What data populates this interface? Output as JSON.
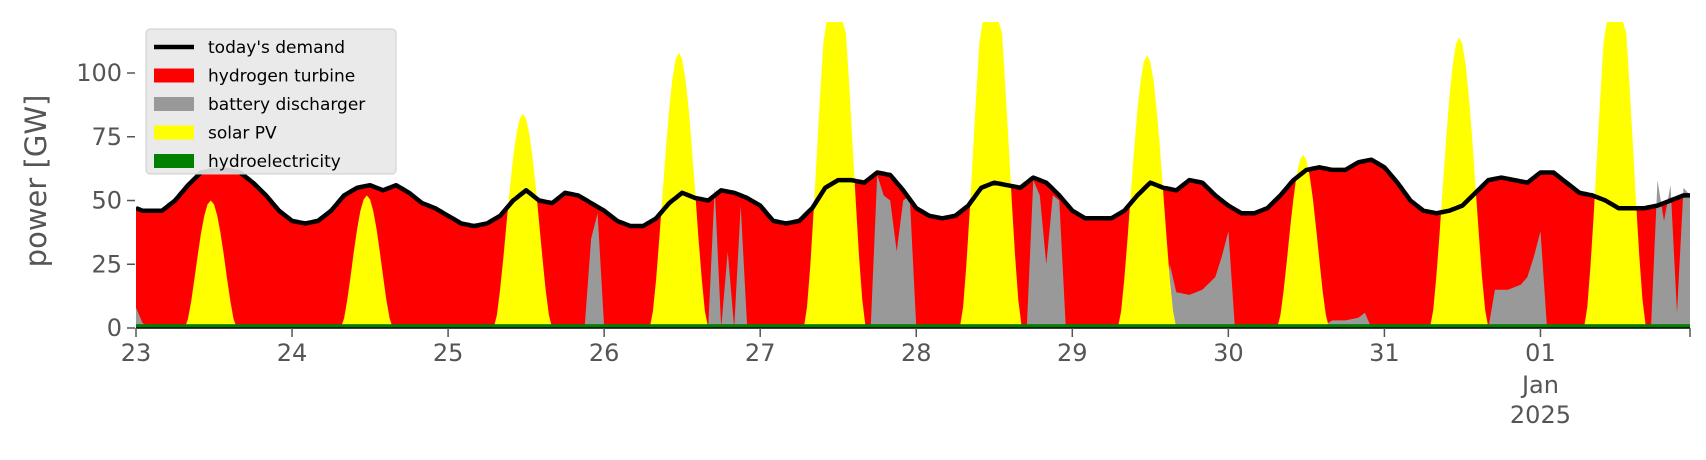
{
  "chart_data": {
    "type": "area",
    "title": "",
    "xlabel": "",
    "ylabel": "power [GW]",
    "ylim": [
      0,
      120
    ],
    "xlim": [
      0,
      239
    ],
    "grid": false,
    "legend_placement": "top-left",
    "y_ticks": [
      {
        "value": 0,
        "label": "0"
      },
      {
        "value": 25,
        "label": "25"
      },
      {
        "value": 50,
        "label": "50"
      },
      {
        "value": 75,
        "label": "75"
      },
      {
        "value": 100,
        "label": "100"
      }
    ],
    "x_ticks": [
      {
        "hour": 0,
        "label": "23"
      },
      {
        "hour": 24,
        "label": "24"
      },
      {
        "hour": 48,
        "label": "25"
      },
      {
        "hour": 72,
        "label": "26"
      },
      {
        "hour": 96,
        "label": "27"
      },
      {
        "hour": 120,
        "label": "28"
      },
      {
        "hour": 144,
        "label": "29"
      },
      {
        "hour": 168,
        "label": "30"
      },
      {
        "hour": 192,
        "label": "31"
      },
      {
        "hour": 216,
        "label": "01",
        "label2": "Jan",
        "label3": "2025"
      }
    ],
    "series": [
      {
        "name": "hydroelectricity",
        "color": "#008000",
        "kind": "area"
      },
      {
        "name": "solar PV",
        "color": "#ffff00",
        "kind": "area"
      },
      {
        "name": "battery discharger",
        "color": "#999999",
        "kind": "area"
      },
      {
        "name": "hydrogen turbine",
        "color": "#ff0000",
        "kind": "area"
      },
      {
        "name": "today's demand",
        "color": "#000000",
        "kind": "line"
      }
    ],
    "legend_order": [
      "today's demand",
      "hydrogen turbine",
      "battery discharger",
      "solar PV",
      "hydroelectricity"
    ],
    "demand_keypoints": [
      [
        0,
        47
      ],
      [
        1,
        46
      ],
      [
        4,
        46
      ],
      [
        6,
        50
      ],
      [
        8,
        56
      ],
      [
        10,
        61
      ],
      [
        12,
        62
      ],
      [
        14,
        62
      ],
      [
        16,
        61
      ],
      [
        18,
        57
      ],
      [
        20,
        52
      ],
      [
        22,
        46
      ],
      [
        24,
        42
      ],
      [
        26,
        41
      ],
      [
        28,
        42
      ],
      [
        30,
        46
      ],
      [
        32,
        52
      ],
      [
        34,
        55
      ],
      [
        36,
        56
      ],
      [
        38,
        54
      ],
      [
        40,
        56
      ],
      [
        42,
        53
      ],
      [
        44,
        49
      ],
      [
        46,
        47
      ],
      [
        48,
        44
      ],
      [
        50,
        41
      ],
      [
        52,
        40
      ],
      [
        54,
        41
      ],
      [
        56,
        44
      ],
      [
        58,
        50
      ],
      [
        60,
        54
      ],
      [
        62,
        50
      ],
      [
        64,
        49
      ],
      [
        66,
        53
      ],
      [
        68,
        52
      ],
      [
        70,
        49
      ],
      [
        72,
        46
      ],
      [
        74,
        42
      ],
      [
        76,
        40
      ],
      [
        78,
        40
      ],
      [
        80,
        43
      ],
      [
        82,
        49
      ],
      [
        84,
        53
      ],
      [
        86,
        51
      ],
      [
        88,
        50
      ],
      [
        90,
        54
      ],
      [
        92,
        53
      ],
      [
        94,
        51
      ],
      [
        96,
        48
      ],
      [
        98,
        42
      ],
      [
        100,
        41
      ],
      [
        102,
        42
      ],
      [
        104,
        47
      ],
      [
        106,
        55
      ],
      [
        108,
        58
      ],
      [
        110,
        58
      ],
      [
        112,
        57
      ],
      [
        114,
        61
      ],
      [
        116,
        60
      ],
      [
        118,
        54
      ],
      [
        120,
        47
      ],
      [
        122,
        44
      ],
      [
        124,
        43
      ],
      [
        126,
        44
      ],
      [
        128,
        48
      ],
      [
        130,
        55
      ],
      [
        132,
        57
      ],
      [
        134,
        56
      ],
      [
        136,
        55
      ],
      [
        138,
        59
      ],
      [
        140,
        57
      ],
      [
        142,
        52
      ],
      [
        144,
        46
      ],
      [
        146,
        43
      ],
      [
        148,
        43
      ],
      [
        150,
        43
      ],
      [
        152,
        46
      ],
      [
        154,
        52
      ],
      [
        156,
        57
      ],
      [
        158,
        55
      ],
      [
        160,
        54
      ],
      [
        162,
        58
      ],
      [
        164,
        57
      ],
      [
        166,
        52
      ],
      [
        168,
        48
      ],
      [
        170,
        45
      ],
      [
        172,
        45
      ],
      [
        174,
        47
      ],
      [
        176,
        52
      ],
      [
        178,
        58
      ],
      [
        180,
        62
      ],
      [
        182,
        63
      ],
      [
        184,
        62
      ],
      [
        186,
        62
      ],
      [
        188,
        65
      ],
      [
        190,
        66
      ],
      [
        192,
        63
      ],
      [
        194,
        57
      ],
      [
        196,
        50
      ],
      [
        198,
        46
      ],
      [
        200,
        45
      ],
      [
        202,
        46
      ],
      [
        204,
        48
      ],
      [
        206,
        53
      ],
      [
        208,
        58
      ],
      [
        210,
        59
      ],
      [
        212,
        58
      ],
      [
        214,
        57
      ],
      [
        216,
        61
      ],
      [
        218,
        61
      ],
      [
        220,
        57
      ],
      [
        222,
        53
      ],
      [
        224,
        52
      ],
      [
        226,
        50
      ],
      [
        228,
        47
      ],
      [
        230,
        47
      ],
      [
        232,
        47
      ],
      [
        234,
        48
      ],
      [
        236,
        50
      ],
      [
        238,
        52
      ],
      [
        239,
        52
      ]
    ],
    "solar_peaks": [
      {
        "center_hour": 11.5,
        "peak": 50,
        "half_width": 4
      },
      {
        "center_hour": 35.5,
        "peak": 52,
        "half_width": 4
      },
      {
        "center_hour": 59.5,
        "peak": 84,
        "half_width": 4.5
      },
      {
        "center_hour": 83.5,
        "peak": 108,
        "half_width": 4.5
      },
      {
        "center_hour": 107.5,
        "peak": 150,
        "half_width": 4.8
      },
      {
        "center_hour": 131.5,
        "peak": 150,
        "half_width": 4.8
      },
      {
        "center_hour": 155.5,
        "peak": 107,
        "half_width": 4.5
      },
      {
        "center_hour": 179.5,
        "peak": 68,
        "half_width": 4
      },
      {
        "center_hour": 203.5,
        "peak": 114,
        "half_width": 4.5
      },
      {
        "center_hour": 227.5,
        "peak": 150,
        "half_width": 4.8
      }
    ],
    "battery_segments": [
      [
        [
          0,
          8
        ],
        [
          1,
          2
        ],
        [
          2,
          0
        ]
      ],
      [
        [
          69,
          0
        ],
        [
          70,
          35
        ],
        [
          71,
          45
        ],
        [
          72,
          0
        ]
      ],
      [
        [
          88,
          0
        ],
        [
          89,
          55
        ],
        [
          90,
          0
        ],
        [
          91,
          30
        ],
        [
          92,
          0
        ],
        [
          93,
          48
        ],
        [
          94,
          0
        ]
      ],
      [
        [
          113,
          0
        ],
        [
          114,
          60
        ],
        [
          115,
          52
        ],
        [
          116,
          50
        ],
        [
          117,
          30
        ],
        [
          118,
          50
        ],
        [
          119,
          52
        ],
        [
          120,
          0
        ]
      ],
      [
        [
          137,
          0
        ],
        [
          138,
          58
        ],
        [
          139,
          52
        ],
        [
          140,
          25
        ],
        [
          141,
          52
        ],
        [
          142,
          50
        ],
        [
          143,
          0
        ]
      ],
      [
        [
          158,
          0
        ],
        [
          159,
          25
        ],
        [
          160,
          14
        ],
        [
          162,
          13
        ],
        [
          164,
          15
        ],
        [
          166,
          20
        ],
        [
          167,
          28
        ],
        [
          168,
          38
        ],
        [
          169,
          0
        ]
      ],
      [
        [
          182,
          0
        ],
        [
          184,
          3
        ],
        [
          186,
          3
        ],
        [
          188,
          4
        ],
        [
          189,
          6
        ],
        [
          190,
          0
        ]
      ],
      [
        [
          208,
          0
        ],
        [
          209,
          15
        ],
        [
          211,
          15
        ],
        [
          213,
          17
        ],
        [
          214,
          20
        ],
        [
          215,
          28
        ],
        [
          216,
          38
        ],
        [
          217,
          0
        ]
      ],
      [
        [
          233,
          0
        ],
        [
          234,
          58
        ],
        [
          235,
          42
        ],
        [
          236,
          56
        ],
        [
          237,
          6
        ],
        [
          238,
          55
        ],
        [
          239,
          52
        ]
      ]
    ],
    "hydro_level": 1.5
  }
}
